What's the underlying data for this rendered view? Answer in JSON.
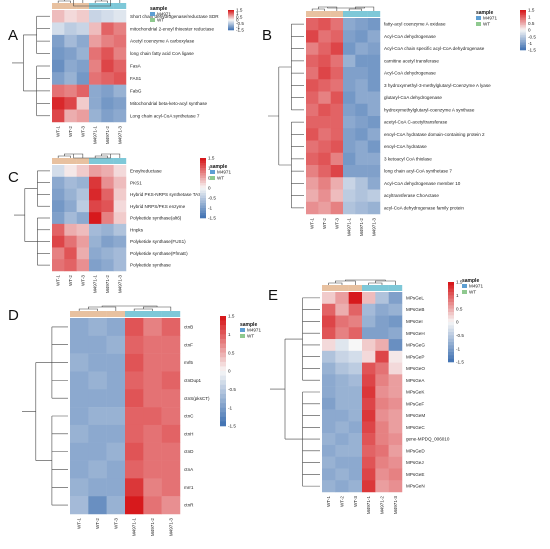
{
  "colors": {
    "high": "#d7191c",
    "mid": "#f7f7f7",
    "low": "#4575b4",
    "group_M4971": "#5e9fd3",
    "group_WT": "#8fc98f",
    "annot_WT": "#e8c1a0",
    "annot_M4971": "#7ec8d8"
  },
  "chart_data": [
    {
      "panel": "A",
      "type": "heatmap",
      "legend_title": "sample",
      "legend_entries": [
        "M4971",
        "WT"
      ],
      "scale_ticks": [
        "1.5",
        "1",
        "0.5",
        "0",
        "-0.5",
        "-1",
        "-1.5"
      ],
      "columns": [
        "WT-1",
        "WT-2",
        "WT-3",
        "M4971-1",
        "M4971-2",
        "M4971-3"
      ],
      "column_groups": [
        "WT",
        "WT",
        "WT",
        "M4971",
        "M4971",
        "M4971"
      ],
      "rows": [
        "Short chain dehydrogenase/reductase SDR",
        "mitochondrial 2-enoyl thioester reductase",
        "Acetyl coenzyme A carboxylase",
        "long chain fatty acid CoA ligase",
        "FasA",
        "FAS1",
        "FabG",
        "Mitochondrial beta-keto-acyl synthase",
        "Long chain acyl-CoA synthetase 7"
      ],
      "values": [
        [
          0.4,
          0.2,
          0.3,
          -0.4,
          -0.3,
          -0.2
        ],
        [
          -0.3,
          -0.5,
          -0.4,
          0.4,
          1.0,
          0.8
        ],
        [
          -1.0,
          -0.7,
          -0.9,
          0.6,
          0.8,
          0.9
        ],
        [
          -1.1,
          -1.0,
          -0.8,
          0.9,
          1.1,
          0.8
        ],
        [
          -1.2,
          -0.9,
          -1.0,
          0.8,
          1.2,
          1.0
        ],
        [
          -1.0,
          -0.8,
          -1.1,
          0.9,
          1.0,
          1.1
        ],
        [
          0.9,
          0.8,
          1.0,
          -0.9,
          -1.0,
          -0.8
        ],
        [
          1.4,
          1.2,
          0.3,
          -0.9,
          -1.1,
          -1.0
        ],
        [
          1.2,
          0.5,
          0.6,
          -0.8,
          -1.0,
          -0.9
        ]
      ]
    },
    {
      "panel": "B",
      "type": "heatmap",
      "legend_title": "sample",
      "legend_entries": [
        "M4971",
        "WT"
      ],
      "scale_ticks": [
        "1.5",
        "1",
        "0.5",
        "0",
        "-0.5",
        "-1",
        "-1.5"
      ],
      "columns": [
        "WT-1",
        "WT-2",
        "WT-3",
        "M4971-1",
        "M4971-2",
        "M4971-3"
      ],
      "column_groups": [
        "WT",
        "WT",
        "WT",
        "M4971",
        "M4971",
        "M4971"
      ],
      "rows": [
        "fatty-acyl coenzyme A oxidase",
        "Acyl-CoA dehydrogenase",
        "Acyl-CoA chain specific acyl-CoA dehydrogenase",
        "carnitine acetyl transferase",
        "Acyl-CoA dehydrogenase",
        "3 hydroxymethyl-3-methylglutaryl-Coenzyme A lyase",
        "glutaryl-CoA dehydrogenase",
        "hydroxymethylglutaryl-coenzyme A synthase",
        "acetyl-CoA C-acetyltransferase",
        "enoyl-CoA hydratase domain-containing protein 2",
        "enoyl-CoA hydratase",
        "3 ketoacyl CoA thiolase",
        "long chain acyl-CoA synthetase 7",
        "Acyl-CoA dehydrogenase member 10",
        "acyltransferase ChoActase",
        "acyl-CoA dehydrogenase family protein"
      ],
      "values": [
        [
          1.0,
          1.1,
          0.9,
          -0.9,
          -1.0,
          -1.1
        ],
        [
          1.2,
          0.9,
          1.0,
          -1.0,
          -1.1,
          -0.9
        ],
        [
          0.8,
          1.0,
          1.2,
          -1.1,
          -0.9,
          -1.0
        ],
        [
          1.0,
          1.1,
          0.9,
          -0.8,
          -1.1,
          -1.1
        ],
        [
          0.9,
          1.2,
          1.0,
          -1.0,
          -1.0,
          -1.1
        ],
        [
          1.1,
          1.0,
          0.9,
          -1.0,
          -0.9,
          -1.1
        ],
        [
          1.0,
          0.8,
          1.1,
          -1.1,
          -0.9,
          -0.9
        ],
        [
          0.9,
          1.1,
          1.0,
          -1.0,
          -1.1,
          -0.9
        ],
        [
          1.0,
          1.0,
          1.0,
          -0.9,
          -1.0,
          -1.1
        ],
        [
          1.1,
          0.9,
          1.0,
          -1.0,
          -1.1,
          -0.9
        ],
        [
          0.9,
          1.0,
          1.1,
          -1.0,
          -0.9,
          -1.1
        ],
        [
          1.0,
          1.1,
          0.8,
          -1.1,
          -0.9,
          -0.9
        ],
        [
          0.8,
          1.0,
          1.2,
          -1.0,
          -1.0,
          -1.0
        ],
        [
          0.6,
          0.8,
          0.5,
          -0.4,
          -0.6,
          -0.9
        ],
        [
          0.5,
          0.7,
          0.4,
          -0.5,
          -0.6,
          -0.5
        ],
        [
          0.7,
          0.6,
          0.8,
          -0.6,
          -0.7,
          -0.8
        ]
      ]
    },
    {
      "panel": "C",
      "type": "heatmap",
      "legend_title": "sample",
      "legend_entries": [
        "M4971",
        "WT"
      ],
      "scale_ticks": [
        "1.5",
        "1",
        "0.5",
        "0",
        "-0.5",
        "-1",
        "-1.5"
      ],
      "columns": [
        "WT-1",
        "WT-2",
        "WT-3",
        "M4971-1",
        "M4971-2",
        "M4971-3"
      ],
      "column_groups": [
        "WT",
        "WT",
        "WT",
        "M4971",
        "M4971",
        "M4971"
      ],
      "rows": [
        "Enoylreductase",
        "PKS1",
        "Hybrid PKS-NRPS synthetase TAS1",
        "Hybrid NRPS/PKS enzyme",
        "Polyketide synthase(alt6)",
        "Hnpks",
        "Polyketide synthase(FUS1)",
        "Polyketide synthase(PfmaE)",
        "Polyketide synthase"
      ],
      "values": [
        [
          -0.3,
          0.1,
          0.3,
          0.6,
          0.5,
          0.2
        ],
        [
          -0.9,
          -0.7,
          -0.8,
          1.3,
          0.7,
          0.4
        ],
        [
          -1.0,
          -0.8,
          -0.6,
          1.4,
          1.0,
          0.3
        ],
        [
          -1.1,
          -0.9,
          -0.5,
          1.2,
          1.1,
          0.2
        ],
        [
          -1.0,
          -0.7,
          -0.9,
          1.5,
          0.8,
          0.3
        ],
        [
          1.0,
          0.5,
          0.4,
          -0.7,
          -0.8,
          -0.6
        ],
        [
          1.2,
          0.9,
          0.6,
          -0.8,
          -1.0,
          -0.9
        ],
        [
          0.8,
          1.1,
          0.5,
          -0.9,
          -0.8,
          -0.7
        ],
        [
          0.9,
          1.0,
          0.7,
          -1.0,
          -0.9,
          -0.7
        ]
      ]
    },
    {
      "panel": "D",
      "type": "heatmap",
      "legend_title": "sample",
      "legend_entries": [
        "M4971",
        "WT"
      ],
      "scale_ticks": [
        "1.5",
        "1",
        "0.5",
        "0",
        "-0.5",
        "-1",
        "-1.5"
      ],
      "columns": [
        "WT-1",
        "WT-2",
        "WT-3",
        "M4971-1",
        "M4971-2",
        "M4971-3"
      ],
      "column_groups": [
        "WT",
        "WT",
        "WT",
        "M4971",
        "M4971",
        "M4971"
      ],
      "rows": [
        "ctnB",
        "ctnF",
        "mrl5",
        "ctnDup1",
        "ctnS(pksCT)",
        "ctnC",
        "ctnH",
        "ctnD",
        "ctnA",
        "mrr1",
        "ctnR"
      ],
      "values": [
        [
          -0.9,
          -0.8,
          -0.9,
          1.1,
          0.8,
          1.0
        ],
        [
          -0.9,
          -0.9,
          -0.8,
          1.0,
          0.9,
          0.9
        ],
        [
          -0.8,
          -0.9,
          -0.9,
          1.1,
          0.9,
          0.9
        ],
        [
          -0.9,
          -0.8,
          -0.9,
          1.0,
          0.9,
          1.0
        ],
        [
          -0.9,
          -0.9,
          -0.9,
          1.1,
          0.9,
          0.9
        ],
        [
          -0.9,
          -0.8,
          -0.8,
          1.0,
          1.0,
          0.9
        ],
        [
          -0.8,
          -0.9,
          -0.9,
          1.0,
          0.9,
          1.0
        ],
        [
          -0.9,
          -0.9,
          -0.8,
          1.1,
          0.9,
          0.9
        ],
        [
          -0.9,
          -0.8,
          -0.9,
          1.0,
          0.9,
          0.9
        ],
        [
          -0.8,
          -0.9,
          -0.9,
          1.3,
          0.8,
          0.9
        ],
        [
          -0.7,
          -1.2,
          -0.8,
          1.5,
          0.9,
          0.7
        ]
      ]
    },
    {
      "panel": "E",
      "type": "heatmap",
      "legend_title": "sample",
      "legend_entries": [
        "M4971",
        "WT"
      ],
      "scale_ticks": [
        "1.5",
        "1",
        "0.5",
        "0",
        "-0.5",
        "-1",
        "-1.5"
      ],
      "columns": [
        "WT-1",
        "WT-2",
        "WT-3",
        "M4971-1",
        "M4971-2",
        "M4971-3"
      ],
      "column_groups": [
        "WT",
        "WT",
        "WT",
        "M4971",
        "M4971",
        "M4971"
      ],
      "rows": [
        "MPsGeL",
        "MPsGeB",
        "MPsGeI",
        "MPsGeH",
        "MPsGeG",
        "MPsGeP",
        "MPsGeO",
        "MPsGeA",
        "MPsGeK",
        "MPsGeF",
        "MPsGeM",
        "MPsGeC",
        "gene-MPDQ_006010",
        "MPsGeD",
        "MPsGeJ",
        "MPsGeE",
        "MPsGeN"
      ],
      "values": [
        [
          0.3,
          0.6,
          1.5,
          0.4,
          -0.6,
          -1.0
        ],
        [
          1.0,
          0.5,
          1.0,
          -0.7,
          -0.9,
          -0.8
        ],
        [
          1.2,
          0.9,
          0.8,
          -0.8,
          -1.0,
          -1.1
        ],
        [
          1.1,
          0.8,
          1.0,
          -1.0,
          -1.0,
          -0.9
        ],
        [
          0.2,
          -0.2,
          0.0,
          0.3,
          0.5,
          -1.2
        ],
        [
          -0.6,
          -0.4,
          -0.3,
          0.2,
          1.2,
          0.1
        ],
        [
          -0.8,
          -0.6,
          -0.5,
          1.1,
          0.9,
          0.2
        ],
        [
          -0.9,
          -0.8,
          -0.7,
          1.2,
          0.8,
          0.6
        ],
        [
          -0.9,
          -0.8,
          -0.8,
          1.3,
          0.7,
          0.6
        ],
        [
          -1.0,
          -0.8,
          -0.8,
          1.2,
          0.8,
          0.7
        ],
        [
          -0.9,
          -0.9,
          -0.8,
          1.3,
          0.7,
          0.6
        ],
        [
          -0.9,
          -0.8,
          -0.9,
          1.2,
          0.8,
          0.6
        ],
        [
          -0.8,
          -0.9,
          -0.8,
          1.1,
          0.8,
          0.7
        ],
        [
          -0.9,
          -0.8,
          -0.8,
          1.0,
          0.9,
          0.6
        ],
        [
          -0.8,
          -0.9,
          -0.9,
          1.1,
          0.8,
          0.7
        ],
        [
          -0.9,
          -0.8,
          -0.9,
          1.2,
          0.7,
          0.8
        ],
        [
          -0.8,
          -0.9,
          -0.8,
          1.3,
          0.6,
          0.7
        ]
      ]
    }
  ]
}
